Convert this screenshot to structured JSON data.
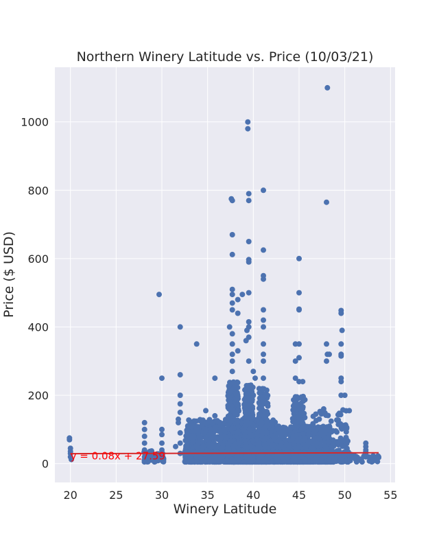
{
  "chart_data": {
    "type": "scatter",
    "title": "Northern Winery Latitude vs. Price (10/03/21)",
    "xlabel": "Winery Latitude",
    "ylabel": "Price ($ USD)",
    "xlim": [
      18.3,
      55.5
    ],
    "ylim": [
      -55,
      1160
    ],
    "xticks": [
      20,
      25,
      30,
      35,
      40,
      45,
      50,
      55
    ],
    "yticks": [
      0,
      200,
      400,
      600,
      800,
      1000
    ],
    "grid": true,
    "colors": {
      "points": "#4c72b0",
      "regression": "#d62728",
      "annotation": "#ff0000",
      "background": "#eaeaf2"
    },
    "regression": {
      "slope": 0.08,
      "intercept": 27.59,
      "x_range": [
        20,
        53.7
      ],
      "label": "y = 0.08x + 27.59",
      "label_position": [
        20,
        22
      ]
    },
    "series": [
      {
        "points": [
          [
            19.9,
            75
          ],
          [
            19.9,
            70
          ],
          [
            20.0,
            45
          ],
          [
            20.0,
            30
          ],
          [
            20.0,
            20
          ],
          [
            20.1,
            12
          ],
          [
            20.0,
            36
          ],
          [
            28.1,
            120
          ],
          [
            28.1,
            100
          ],
          [
            28.1,
            80
          ],
          [
            28.1,
            60
          ],
          [
            28.1,
            40
          ],
          [
            28.1,
            20
          ],
          [
            28.1,
            10
          ],
          [
            29.7,
            495
          ],
          [
            30.0,
            250
          ],
          [
            30.0,
            100
          ],
          [
            30.0,
            85
          ],
          [
            30.0,
            60
          ],
          [
            30.0,
            40
          ],
          [
            30.0,
            20
          ],
          [
            31.5,
            50
          ],
          [
            31.8,
            130
          ],
          [
            31.8,
            120
          ],
          [
            32.0,
            400
          ],
          [
            32.0,
            260
          ],
          [
            32.0,
            200
          ],
          [
            32.0,
            175
          ],
          [
            32.0,
            150
          ],
          [
            32.0,
            90
          ],
          [
            32.0,
            60
          ],
          [
            32.0,
            30
          ],
          [
            33.8,
            350
          ],
          [
            33.5,
            80
          ],
          [
            34.0,
            60
          ],
          [
            34.0,
            40
          ],
          [
            34.8,
            155
          ],
          [
            34.8,
            100
          ],
          [
            35.5,
            120
          ],
          [
            35.8,
            250
          ],
          [
            35.8,
            140
          ],
          [
            37.4,
            400
          ],
          [
            37.6,
            775
          ],
          [
            37.7,
            770
          ],
          [
            37.7,
            670
          ],
          [
            37.7,
            612
          ],
          [
            37.7,
            510
          ],
          [
            37.7,
            495
          ],
          [
            37.7,
            470
          ],
          [
            37.7,
            450
          ],
          [
            37.7,
            380
          ],
          [
            37.7,
            350
          ],
          [
            37.7,
            320
          ],
          [
            37.7,
            300
          ],
          [
            37.7,
            270
          ],
          [
            38.3,
            480
          ],
          [
            38.3,
            440
          ],
          [
            38.3,
            330
          ],
          [
            38.8,
            495
          ],
          [
            39.4,
            1000
          ],
          [
            39.4,
            980
          ],
          [
            39.5,
            790
          ],
          [
            39.5,
            770
          ],
          [
            39.5,
            650
          ],
          [
            39.5,
            597
          ],
          [
            39.5,
            590
          ],
          [
            39.5,
            500
          ],
          [
            39.5,
            415
          ],
          [
            39.5,
            400
          ],
          [
            39.5,
            370
          ],
          [
            39.5,
            300
          ],
          [
            39.3,
            390
          ],
          [
            39.2,
            360
          ],
          [
            40.0,
            270
          ],
          [
            40.2,
            250
          ],
          [
            41.1,
            800
          ],
          [
            41.1,
            625
          ],
          [
            41.1,
            550
          ],
          [
            41.1,
            540
          ],
          [
            41.1,
            450
          ],
          [
            41.1,
            420
          ],
          [
            41.1,
            400
          ],
          [
            41.1,
            350
          ],
          [
            41.1,
            320
          ],
          [
            41.1,
            300
          ],
          [
            41.1,
            250
          ],
          [
            45.0,
            600
          ],
          [
            45.0,
            500
          ],
          [
            45.0,
            452
          ],
          [
            45.0,
            450
          ],
          [
            44.6,
            350
          ],
          [
            45.0,
            350
          ],
          [
            44.6,
            300
          ],
          [
            45.0,
            310
          ],
          [
            44.6,
            250
          ],
          [
            45.0,
            240
          ],
          [
            45.4,
            240
          ],
          [
            48.1,
            1100
          ],
          [
            48.0,
            765
          ],
          [
            48.0,
            350
          ],
          [
            48.1,
            320
          ],
          [
            48.3,
            320
          ],
          [
            48.0,
            300
          ],
          [
            49.6,
            448
          ],
          [
            49.6,
            440
          ],
          [
            49.7,
            390
          ],
          [
            49.6,
            350
          ],
          [
            49.6,
            320
          ],
          [
            49.6,
            315
          ],
          [
            49.6,
            250
          ],
          [
            49.6,
            240
          ],
          [
            49.6,
            200
          ],
          [
            50.0,
            200
          ],
          [
            52.3,
            60
          ],
          [
            52.3,
            50
          ],
          [
            52.3,
            40
          ],
          [
            52.3,
            30
          ],
          [
            52.3,
            20
          ],
          [
            53.7,
            20
          ],
          [
            53.7,
            18
          ],
          [
            51.0,
            25
          ],
          [
            51.0,
            18
          ]
        ]
      }
    ],
    "clusters": [
      {
        "x_range": [
          32.5,
          42.5
        ],
        "y_range": [
          5,
          130
        ],
        "density": 1400
      },
      {
        "x_range": [
          37.2,
          38.4
        ],
        "y_range": [
          5,
          240
        ],
        "density": 400
      },
      {
        "x_range": [
          39.0,
          40.0
        ],
        "y_range": [
          5,
          230
        ],
        "density": 400
      },
      {
        "x_range": [
          40.6,
          41.6
        ],
        "y_range": [
          5,
          220
        ],
        "density": 300
      },
      {
        "x_range": [
          42.5,
          48.5
        ],
        "y_range": [
          5,
          110
        ],
        "density": 650
      },
      {
        "x_range": [
          44.3,
          45.7
        ],
        "y_range": [
          5,
          200
        ],
        "density": 350
      },
      {
        "x_range": [
          46.5,
          50.5
        ],
        "y_range": [
          5,
          160
        ],
        "density": 220
      },
      {
        "x_range": [
          28.0,
          30.2
        ],
        "y_range": [
          5,
          40
        ],
        "density": 40
      },
      {
        "x_range": [
          50.5,
          53.8
        ],
        "y_range": [
          5,
          35
        ],
        "density": 30
      }
    ]
  }
}
